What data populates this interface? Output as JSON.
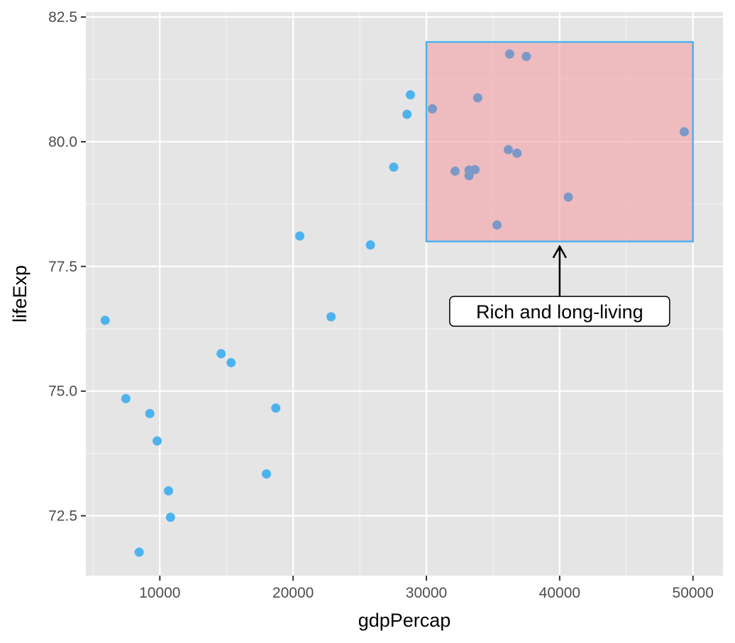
{
  "chart_data": {
    "type": "scatter",
    "title": "",
    "xlabel": "gdpPercap",
    "ylabel": "lifeExp",
    "xlim": [
      4450,
      52250
    ],
    "ylim": [
      71.3,
      82.6
    ],
    "x_ticks": [
      10000,
      20000,
      30000,
      40000,
      50000
    ],
    "x_tick_labels": [
      "10000",
      "20000",
      "30000",
      "40000",
      "50000"
    ],
    "y_ticks": [
      72.5,
      75.0,
      77.5,
      80.0,
      82.5
    ],
    "y_tick_labels": [
      "72.5",
      "75.0",
      "77.5",
      "80.0",
      "82.5"
    ],
    "grid": true,
    "legend": "none",
    "colors": {
      "panel": "#e5e5e5",
      "grid_major": "#ffffff",
      "point": "#4db3ee",
      "highlight_fill": "#f4a1a7",
      "highlight_border": "#4db3ee"
    },
    "series": [
      {
        "points": [
          {
            "x": 5900,
            "y": 76.42
          },
          {
            "x": 7450,
            "y": 74.85
          },
          {
            "x": 9250,
            "y": 74.55
          },
          {
            "x": 9800,
            "y": 74.0
          },
          {
            "x": 10650,
            "y": 73.0
          },
          {
            "x": 10800,
            "y": 72.47
          },
          {
            "x": 8450,
            "y": 71.77
          },
          {
            "x": 14600,
            "y": 75.75
          },
          {
            "x": 15350,
            "y": 75.57
          },
          {
            "x": 18000,
            "y": 73.34
          },
          {
            "x": 18700,
            "y": 74.66
          },
          {
            "x": 20500,
            "y": 78.11
          },
          {
            "x": 22850,
            "y": 76.49
          },
          {
            "x": 25800,
            "y": 77.93
          },
          {
            "x": 27550,
            "y": 79.49
          },
          {
            "x": 28550,
            "y": 80.55
          },
          {
            "x": 28800,
            "y": 80.94
          },
          {
            "x": 30450,
            "y": 80.66
          },
          {
            "x": 32150,
            "y": 79.41
          },
          {
            "x": 33200,
            "y": 79.43
          },
          {
            "x": 33200,
            "y": 79.32
          },
          {
            "x": 33650,
            "y": 79.44
          },
          {
            "x": 33850,
            "y": 80.88
          },
          {
            "x": 35300,
            "y": 78.33
          },
          {
            "x": 36150,
            "y": 79.84
          },
          {
            "x": 36250,
            "y": 81.76
          },
          {
            "x": 36800,
            "y": 79.77
          },
          {
            "x": 37500,
            "y": 81.71
          },
          {
            "x": 40650,
            "y": 78.89
          },
          {
            "x": 49350,
            "y": 80.2
          }
        ]
      }
    ],
    "annotations": {
      "rect": {
        "xmin": 30000,
        "xmax": 50000,
        "ymin": 78,
        "ymax": 82
      },
      "label": {
        "text": "Rich and long-living",
        "x": 40000,
        "y": 76.6
      },
      "arrow": {
        "x": 40000,
        "y_from": 76.8,
        "y_to": 77.9
      }
    }
  }
}
